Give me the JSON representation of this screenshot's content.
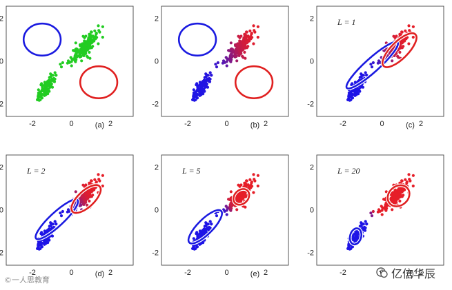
{
  "chart_data": [
    {
      "type": "scatter",
      "panel_label": "(a)",
      "L_label": "",
      "color_mode": "green",
      "xlim": [
        -2.6,
        3.2
      ],
      "ylim": [
        -2.6,
        2.4
      ],
      "x_ticks": [
        "-2",
        "0",
        "2"
      ],
      "y_ticks": [
        "2",
        "0",
        "-2"
      ],
      "ellipses": [
        {
          "cx": -1.5,
          "cy": 1.0,
          "rx": 0.95,
          "ry": 0.75,
          "angle": 0,
          "color": "#1a1ae0"
        },
        {
          "cx": 1.4,
          "cy": -1.0,
          "rx": 0.95,
          "ry": 0.75,
          "angle": 0,
          "color": "#e02020"
        }
      ]
    },
    {
      "type": "scatter",
      "panel_label": "(b)",
      "L_label": "",
      "color_mode": "resp0",
      "xlim": [
        -2.6,
        3.2
      ],
      "ylim": [
        -2.6,
        2.4
      ],
      "x_ticks": [
        "-2",
        "0",
        "2"
      ],
      "y_ticks": [
        "2",
        "0",
        "-2"
      ],
      "ellipses": [
        {
          "cx": -1.5,
          "cy": 1.0,
          "rx": 0.95,
          "ry": 0.75,
          "angle": 0,
          "color": "#1a1ae0"
        },
        {
          "cx": 1.4,
          "cy": -1.0,
          "rx": 0.95,
          "ry": 0.75,
          "angle": 0,
          "color": "#e02020"
        }
      ]
    },
    {
      "type": "scatter",
      "panel_label": "(c)",
      "L_label": "L = 1",
      "color_mode": "resp1",
      "xlim": [
        -2.6,
        3.2
      ],
      "ylim": [
        -2.6,
        2.4
      ],
      "x_ticks": [
        "-2",
        "0",
        "2"
      ],
      "y_ticks": [
        "2",
        "0",
        "-2"
      ],
      "ellipses": [
        {
          "cx": -0.5,
          "cy": -0.2,
          "rx": 1.75,
          "ry": 0.32,
          "angle": 42,
          "color": "#1a1ae0"
        },
        {
          "cx": 0.9,
          "cy": 0.5,
          "rx": 1.15,
          "ry": 0.4,
          "angle": 45,
          "color": "#e02020"
        }
      ]
    },
    {
      "type": "scatter",
      "panel_label": "(d)",
      "L_label": "L = 2",
      "color_mode": "resp2",
      "xlim": [
        -2.6,
        3.2
      ],
      "ylim": [
        -2.6,
        2.4
      ],
      "x_ticks": [
        "-2",
        "0",
        "2"
      ],
      "y_ticks": [
        "2",
        "0",
        "-2"
      ],
      "ellipses": [
        {
          "cx": -0.75,
          "cy": -0.45,
          "rx": 1.45,
          "ry": 0.32,
          "angle": 43,
          "color": "#1a1ae0"
        },
        {
          "cx": 0.75,
          "cy": 0.5,
          "rx": 0.95,
          "ry": 0.38,
          "angle": 43,
          "color": "#e02020"
        }
      ]
    },
    {
      "type": "scatter",
      "panel_label": "(e)",
      "L_label": "L = 5",
      "color_mode": "resp5",
      "xlim": [
        -2.6,
        3.2
      ],
      "ylim": [
        -2.6,
        2.4
      ],
      "x_ticks": [
        "-2",
        "0",
        "2"
      ],
      "y_ticks": [
        "2",
        "0",
        "-2"
      ],
      "ellipses": [
        {
          "cx": -1.1,
          "cy": -0.8,
          "rx": 1.15,
          "ry": 0.35,
          "angle": 45,
          "color": "#1a1ae0"
        },
        {
          "cx": 0.75,
          "cy": 0.6,
          "rx": 0.45,
          "ry": 0.32,
          "angle": 45,
          "color": "#e02020"
        }
      ]
    },
    {
      "type": "scatter",
      "panel_label": "(f)",
      "L_label": "L = 20",
      "color_mode": "resp20",
      "xlim": [
        -2.6,
        3.2
      ],
      "ylim": [
        -2.6,
        2.4
      ],
      "x_ticks": [
        "-2",
        "0",
        "2"
      ],
      "y_ticks": [
        "2",
        "0",
        "-2"
      ],
      "ellipses": [
        {
          "cx": -1.35,
          "cy": -1.25,
          "rx": 0.42,
          "ry": 0.26,
          "angle": 75,
          "color": "#1a1ae0"
        },
        {
          "cx": 0.85,
          "cy": 0.65,
          "rx": 0.6,
          "ry": 0.45,
          "angle": 40,
          "color": "#e02020"
        }
      ]
    }
  ],
  "watermark_left": "©一人思教育",
  "watermark_right": "亿信华辰"
}
